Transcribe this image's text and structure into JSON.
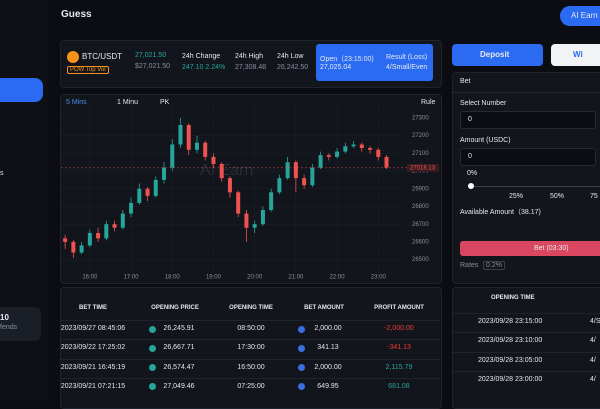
{
  "header": {
    "title": "Guess",
    "button": "AI Earn"
  },
  "sidebar": {
    "partial_item": "s",
    "card": {
      "value": "10",
      "label": "fends"
    }
  },
  "ticker": {
    "pair": "BTC/USDT",
    "price": "27,021.50",
    "price_usd": "$27,021.50",
    "badge": "POW Top Vol",
    "change_label": "24h Change",
    "change_value": "247.10 2.24%",
    "high_label": "24h High",
    "high_value": "27,308.48",
    "low_label": "24h Low",
    "low_value": "26,242.50",
    "open_label": "Open（23:15:00)",
    "open_value": "27,025.04",
    "result_label": "Result (Loss)",
    "result_value": "4/Small/Even"
  },
  "chart_tabs": [
    "5 Mins",
    "1 Minu",
    "PK"
  ],
  "rule": "Rule",
  "watermark": "AI Earn",
  "chart_data": {
    "type": "candlestick",
    "x": [
      15.4,
      15.6,
      15.8,
      16.0,
      16.2,
      16.4,
      16.6,
      16.8,
      17.0,
      17.2,
      17.4,
      17.6,
      17.8,
      18.0,
      18.2,
      18.4,
      18.6,
      18.8,
      19.0,
      19.2,
      19.4,
      19.6,
      19.8,
      20.0,
      20.2,
      20.4,
      20.6,
      20.8,
      21.0,
      21.2,
      21.4,
      21.6,
      21.8,
      22.0,
      22.2,
      22.4,
      22.6,
      22.8,
      23.0,
      23.2
    ],
    "open": [
      26620,
      26600,
      26540,
      26580,
      26650,
      26620,
      26700,
      26680,
      26760,
      26820,
      26900,
      26860,
      26950,
      27020,
      27150,
      27260,
      27120,
      27160,
      27080,
      27040,
      26960,
      26880,
      26760,
      26680,
      26700,
      26780,
      26880,
      26960,
      27050,
      26960,
      26920,
      27020,
      27090,
      27080,
      27110,
      27140,
      27150,
      27130,
      27120,
      27080
    ],
    "high": [
      26640,
      26610,
      26600,
      26670,
      26680,
      26720,
      26720,
      26780,
      26850,
      26930,
      26910,
      26970,
      27050,
      27180,
      27300,
      27270,
      27200,
      27170,
      27100,
      27050,
      26970,
      26890,
      26780,
      26720,
      26800,
      26900,
      26980,
      27080,
      27060,
      26980,
      27040,
      27110,
      27100,
      27130,
      27160,
      27170,
      27160,
      27140,
      27130,
      27090
    ],
    "low": [
      26560,
      26510,
      26530,
      26570,
      26600,
      26610,
      26660,
      26670,
      26740,
      26810,
      26830,
      26850,
      26930,
      27000,
      27130,
      27090,
      27100,
      27060,
      27020,
      26940,
      26850,
      26740,
      26600,
      26650,
      26690,
      26770,
      26870,
      26950,
      26880,
      26900,
      26910,
      27010,
      27060,
      27070,
      27100,
      27130,
      27110,
      27100,
      27060,
      27010
    ],
    "close": [
      26600,
      26540,
      26580,
      26650,
      26620,
      26700,
      26680,
      26760,
      26820,
      26900,
      26860,
      26950,
      27020,
      27150,
      27260,
      27120,
      27160,
      27080,
      27040,
      26960,
      26880,
      26760,
      26680,
      26700,
      26780,
      26880,
      26960,
      27050,
      26960,
      26920,
      27020,
      27090,
      27080,
      27110,
      27140,
      27150,
      27130,
      27120,
      27080,
      27020
    ],
    "xlim": [
      15.3,
      23.6
    ],
    "xticks": [
      {
        "value": 16,
        "label": "16:00"
      },
      {
        "value": 17,
        "label": "17:00"
      },
      {
        "value": 18,
        "label": "18:00"
      },
      {
        "value": 19,
        "label": "19:00"
      },
      {
        "value": 20,
        "label": "20:00"
      },
      {
        "value": 21,
        "label": "21:00"
      },
      {
        "value": 22,
        "label": "22:00"
      },
      {
        "value": 23,
        "label": "23:00"
      }
    ],
    "ylim": [
      26430,
      27390
    ],
    "yticks": [
      26500,
      26600,
      26700,
      26800,
      26900,
      27000,
      27100,
      27200,
      27300
    ],
    "last_price": 27018.13,
    "up_color": "#26a69a",
    "down_color": "#ef5350",
    "grid": true
  },
  "bet_table": {
    "headers": [
      "BET TIME",
      "OPENING PRICE",
      "OPENING TIME",
      "BET AMOUNT",
      "PROFIT AMOUNT"
    ],
    "rows": [
      [
        "2023/09/27 08:45:06",
        "26,245.91",
        "08:50:00",
        "2,000.00",
        "-2,000.00"
      ],
      [
        "2023/09/22 17:25:02",
        "26,667.71",
        "17:30:00",
        "341.13",
        "-341.13"
      ],
      [
        "2023/09/21 16:45:19",
        "26,574.47",
        "16:50:00",
        "2,000.00",
        "2,115.79"
      ],
      [
        "2023/09/21 07:21:15",
        "27,049.46",
        "07:25:00",
        "649.95",
        "681.08"
      ]
    ]
  },
  "bet_panel": {
    "deposit": "Deposit",
    "withdraw": "Wi",
    "tab": "Bet",
    "number_label": "Select Number",
    "number_value": "0",
    "amount_label": "Amount (USDC)",
    "amount_value": "0",
    "percent": "0%",
    "marks": [
      "25%",
      "50%",
      "75"
    ],
    "available": "Available Amount（38.17)",
    "button": "Bet (03:30)",
    "rates_label": "Rates",
    "rates_value": "0.2%"
  },
  "history": {
    "header": "OPENING TIME",
    "rows": [
      [
        "2023/09/28 23:15:00",
        "4/S"
      ],
      [
        "2023/09/28 23:10:00",
        "4/"
      ],
      [
        "2023/09/28 23:05:00",
        "4/"
      ],
      [
        "2023/09/28 23:00:00",
        "4/"
      ]
    ]
  }
}
